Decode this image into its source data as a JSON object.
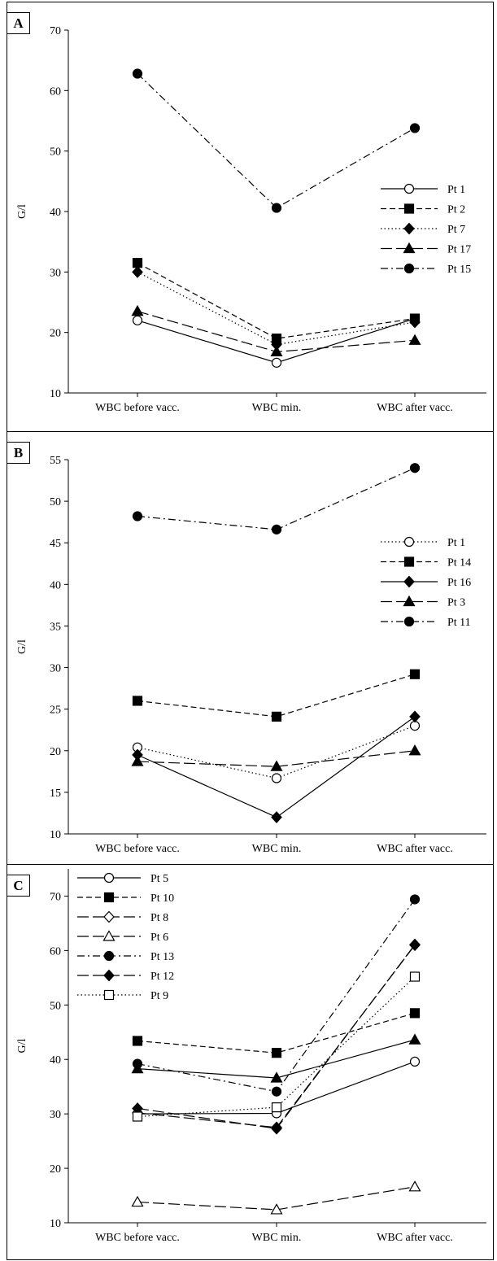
{
  "chart_data": [
    {
      "panel": "A",
      "type": "line",
      "categories": [
        "WBC before vacc.",
        "WBC min.",
        "WBC after vacc."
      ],
      "ylabel": "G/l",
      "ylim": [
        10,
        70
      ],
      "yticks": [
        10,
        20,
        30,
        40,
        50,
        60,
        70
      ],
      "legend_position": "right",
      "series": [
        {
          "name": "Pt 1",
          "marker": "circle-open",
          "dash": "solid",
          "values": [
            22,
            15,
            22.3
          ]
        },
        {
          "name": "Pt 2",
          "marker": "square",
          "dash": "dashed",
          "values": [
            31.5,
            19,
            22.3
          ]
        },
        {
          "name": "Pt 7",
          "marker": "diamond",
          "dash": "dotted",
          "values": [
            30,
            18,
            21.7
          ]
        },
        {
          "name": "Pt 17",
          "marker": "triangle",
          "dash": "longdash",
          "values": [
            23.5,
            16.8,
            18.7
          ]
        },
        {
          "name": "Pt 15",
          "marker": "circle",
          "dash": "dashdot",
          "values": [
            62.8,
            40.6,
            53.8
          ]
        }
      ]
    },
    {
      "panel": "B",
      "type": "line",
      "categories": [
        "WBC before vacc.",
        "WBC min.",
        "WBC after vacc."
      ],
      "ylabel": "G/l",
      "ylim": [
        10,
        55
      ],
      "yticks": [
        10,
        15,
        20,
        25,
        30,
        35,
        40,
        45,
        50,
        55
      ],
      "legend_position": "right",
      "series": [
        {
          "name": "Pt 1",
          "marker": "circle-open",
          "dash": "dotted",
          "values": [
            20.4,
            16.7,
            23
          ]
        },
        {
          "name": "Pt 14",
          "marker": "square",
          "dash": "dashed",
          "values": [
            26,
            24.1,
            29.2
          ]
        },
        {
          "name": "Pt 16",
          "marker": "diamond",
          "dash": "solid",
          "values": [
            19.5,
            12,
            24.1
          ]
        },
        {
          "name": "Pt 3",
          "marker": "triangle",
          "dash": "longdash",
          "values": [
            18.7,
            18.1,
            20
          ]
        },
        {
          "name": "Pt 11",
          "marker": "circle",
          "dash": "dashdot",
          "values": [
            48.2,
            46.6,
            54
          ]
        }
      ]
    },
    {
      "panel": "C",
      "type": "line",
      "categories": [
        "WBC before vacc.",
        "WBC min.",
        "WBC after vacc."
      ],
      "ylabel": "G/l",
      "ylim": [
        10,
        75
      ],
      "yticks": [
        10,
        20,
        30,
        40,
        50,
        60,
        70
      ],
      "legend_position": "top-left",
      "series": [
        {
          "name": "Pt 5",
          "marker": "circle-open",
          "dash": "solid",
          "values": [
            30,
            30.1,
            39.6
          ]
        },
        {
          "name": "Pt 10",
          "marker": "square",
          "dash": "dashed",
          "values": [
            43.4,
            41.2,
            48.5
          ]
        },
        {
          "name": "Pt 8",
          "marker": "diamond-open",
          "dash": "longdash",
          "values": [
            30.2,
            27.5,
            61
          ]
        },
        {
          "name": "Pt 6",
          "marker": "triangle-open",
          "dash": "longdash",
          "values": [
            13.8,
            12.4,
            16.6
          ]
        },
        {
          "name": "Pt 13",
          "marker": "circle",
          "dash": "dashdot",
          "values": [
            39.2,
            34.1,
            69.4
          ]
        },
        {
          "name": "Pt 12",
          "marker": "diamond",
          "dash": "longdash",
          "values": [
            31,
            27.3,
            61.1
          ]
        },
        {
          "name": "Pt 9",
          "marker": "square-open",
          "dash": "dotted",
          "values": [
            29.5,
            31.2,
            55.2
          ]
        },
        {
          "name": "",
          "marker": "triangle",
          "dash": "solid",
          "values": [
            38.3,
            36.6,
            43.6
          ]
        }
      ]
    }
  ]
}
